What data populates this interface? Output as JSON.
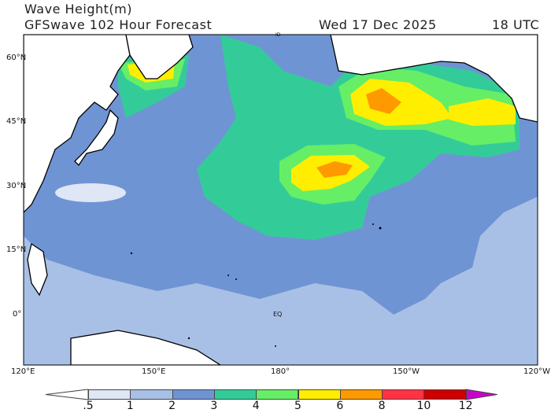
{
  "title": {
    "line1": "Wave Height(m)",
    "model": "GFSwave 102 Hour Forecast",
    "date": "Wed 17 Dec 2025",
    "time": "18 UTC"
  },
  "lat_labels": [
    "60°N",
    "45°N",
    "30°N",
    "15°N",
    "0°"
  ],
  "lon_labels": [
    "120°E",
    "150°E",
    "180°",
    "150°W",
    "120°W"
  ],
  "map_labels": {
    "equator": "EQ",
    "dateline": "ID"
  },
  "colorbar": {
    "labels": [
      ".5",
      "1",
      "2",
      "3",
      "4",
      "5",
      "6",
      "8",
      "10",
      "12"
    ],
    "colors": [
      "#ffffff",
      "#dfe6f5",
      "#a9c0e6",
      "#6f94d4",
      "#33cc99",
      "#66ee66",
      "#ffee00",
      "#ff9900",
      "#ff3344",
      "#cc0000",
      "#cc00cc"
    ]
  },
  "colors": {
    "land": "#ffffff",
    "coast": "#000000"
  }
}
